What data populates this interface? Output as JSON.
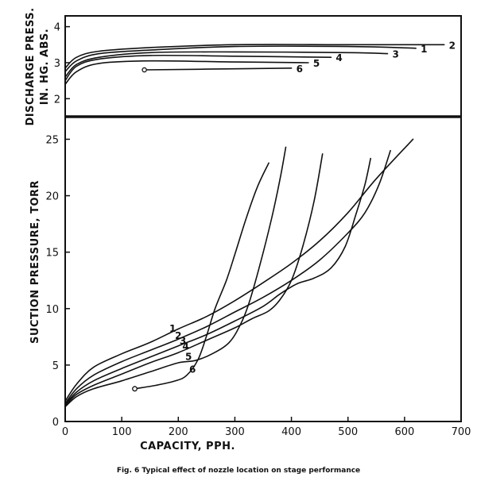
{
  "chart_data": [
    {
      "type": "line",
      "ylabel_lines": [
        "DISCHARGE PRESS.",
        "IN. HG. ABS."
      ],
      "ylim": [
        1.5,
        4.3
      ],
      "yticks": [
        "2",
        "3",
        "4"
      ],
      "yticks_values": [
        2,
        3,
        4
      ],
      "series": [
        {
          "name": "1",
          "points": [
            [
              0,
              2.75
            ],
            [
              20,
              3.05
            ],
            [
              60,
              3.25
            ],
            [
              150,
              3.35
            ],
            [
              300,
              3.45
            ],
            [
              500,
              3.45
            ],
            [
              620,
              3.4
            ]
          ]
        },
        {
          "name": "2",
          "points": [
            [
              0,
              2.85
            ],
            [
              20,
              3.15
            ],
            [
              60,
              3.32
            ],
            [
              150,
              3.42
            ],
            [
              300,
              3.5
            ],
            [
              500,
              3.5
            ],
            [
              670,
              3.5
            ]
          ]
        },
        {
          "name": "3",
          "points": [
            [
              0,
              2.6
            ],
            [
              20,
              2.95
            ],
            [
              60,
              3.15
            ],
            [
              150,
              3.28
            ],
            [
              300,
              3.3
            ],
            [
              500,
              3.28
            ],
            [
              570,
              3.25
            ]
          ]
        },
        {
          "name": "4",
          "points": [
            [
              0,
              2.5
            ],
            [
              20,
              2.9
            ],
            [
              60,
              3.1
            ],
            [
              150,
              3.2
            ],
            [
              300,
              3.18
            ],
            [
              470,
              3.15
            ]
          ]
        },
        {
          "name": "5",
          "points": [
            [
              0,
              2.4
            ],
            [
              20,
              2.75
            ],
            [
              60,
              2.98
            ],
            [
              150,
              3.05
            ],
            [
              300,
              3.02
            ],
            [
              430,
              3.0
            ]
          ]
        },
        {
          "name": "6",
          "points": [
            [
              140,
              2.8
            ],
            [
              250,
              2.82
            ],
            [
              400,
              2.85
            ]
          ]
        }
      ]
    },
    {
      "type": "line",
      "xlabel": "CAPACITY,  PPH.",
      "ylabel": "SUCTION PRESSURE, TORR",
      "xlim": [
        0,
        700
      ],
      "ylim": [
        0,
        27
      ],
      "xticks": [
        "0",
        "100",
        "200",
        "300",
        "400",
        "500",
        "600",
        "700"
      ],
      "xticks_values": [
        0,
        100,
        200,
        300,
        400,
        500,
        600,
        700
      ],
      "yticks": [
        "0",
        "5",
        "10",
        "15",
        "20",
        "25"
      ],
      "yticks_values": [
        0,
        5,
        10,
        15,
        20,
        25
      ],
      "series": [
        {
          "name": "1",
          "points": [
            [
              0,
              1.8
            ],
            [
              20,
              3.3
            ],
            [
              50,
              4.8
            ],
            [
              100,
              6.0
            ],
            [
              150,
              7.0
            ],
            [
              200,
              8.2
            ],
            [
              250,
              9.3
            ],
            [
              300,
              10.7
            ],
            [
              350,
              12.3
            ],
            [
              400,
              14.0
            ],
            [
              450,
              16.0
            ],
            [
              500,
              18.5
            ],
            [
              550,
              21.5
            ],
            [
              615,
              25.0
            ]
          ]
        },
        {
          "name": "2",
          "points": [
            [
              0,
              1.6
            ],
            [
              20,
              2.9
            ],
            [
              50,
              4.1
            ],
            [
              100,
              5.3
            ],
            [
              150,
              6.3
            ],
            [
              200,
              7.3
            ],
            [
              250,
              8.4
            ],
            [
              300,
              9.7
            ],
            [
              350,
              11.0
            ],
            [
              400,
              12.5
            ],
            [
              450,
              14.3
            ],
            [
              500,
              16.7
            ],
            [
              530,
              18.5
            ],
            [
              555,
              21.0
            ],
            [
              575,
              24.0
            ]
          ]
        },
        {
          "name": "3",
          "points": [
            [
              0,
              1.5
            ],
            [
              20,
              2.6
            ],
            [
              50,
              3.6
            ],
            [
              100,
              4.7
            ],
            [
              150,
              5.7
            ],
            [
              200,
              6.7
            ],
            [
              250,
              7.7
            ],
            [
              300,
              8.9
            ],
            [
              350,
              10.2
            ],
            [
              380,
              11.3
            ],
            [
              410,
              12.2
            ],
            [
              440,
              12.7
            ],
            [
              470,
              13.6
            ],
            [
              495,
              15.5
            ],
            [
              515,
              18.5
            ],
            [
              530,
              21.0
            ],
            [
              540,
              23.3
            ]
          ]
        },
        {
          "name": "4",
          "points": [
            [
              0,
              1.4
            ],
            [
              20,
              2.4
            ],
            [
              50,
              3.2
            ],
            [
              100,
              4.2
            ],
            [
              150,
              5.2
            ],
            [
              200,
              6.1
            ],
            [
              250,
              7.2
            ],
            [
              300,
              8.3
            ],
            [
              330,
              9.1
            ],
            [
              360,
              9.8
            ],
            [
              380,
              10.8
            ],
            [
              400,
              12.5
            ],
            [
              420,
              15.5
            ],
            [
              440,
              19.5
            ],
            [
              455,
              23.7
            ]
          ]
        },
        {
          "name": "5",
          "points": [
            [
              0,
              1.3
            ],
            [
              20,
              2.2
            ],
            [
              50,
              2.9
            ],
            [
              100,
              3.6
            ],
            [
              150,
              4.4
            ],
            [
              200,
              5.2
            ],
            [
              230,
              5.4
            ],
            [
              260,
              6.0
            ],
            [
              290,
              7.0
            ],
            [
              310,
              8.6
            ],
            [
              325,
              10.5
            ],
            [
              345,
              14.0
            ],
            [
              365,
              18.0
            ],
            [
              380,
              21.5
            ],
            [
              390,
              24.3
            ]
          ]
        },
        {
          "name": "6",
          "points": [
            [
              123,
              2.9
            ],
            [
              160,
              3.2
            ],
            [
              195,
              3.6
            ],
            [
              215,
              4.1
            ],
            [
              235,
              5.5
            ],
            [
              250,
              7.6
            ],
            [
              265,
              10.0
            ],
            [
              285,
              12.5
            ],
            [
              300,
              14.8
            ],
            [
              320,
              18.0
            ],
            [
              340,
              20.8
            ],
            [
              360,
              22.9
            ]
          ]
        }
      ],
      "end_marker_series": [
        "6"
      ]
    }
  ],
  "caption": "Fig. 6   Typical effect of nozzle location on stage performance"
}
